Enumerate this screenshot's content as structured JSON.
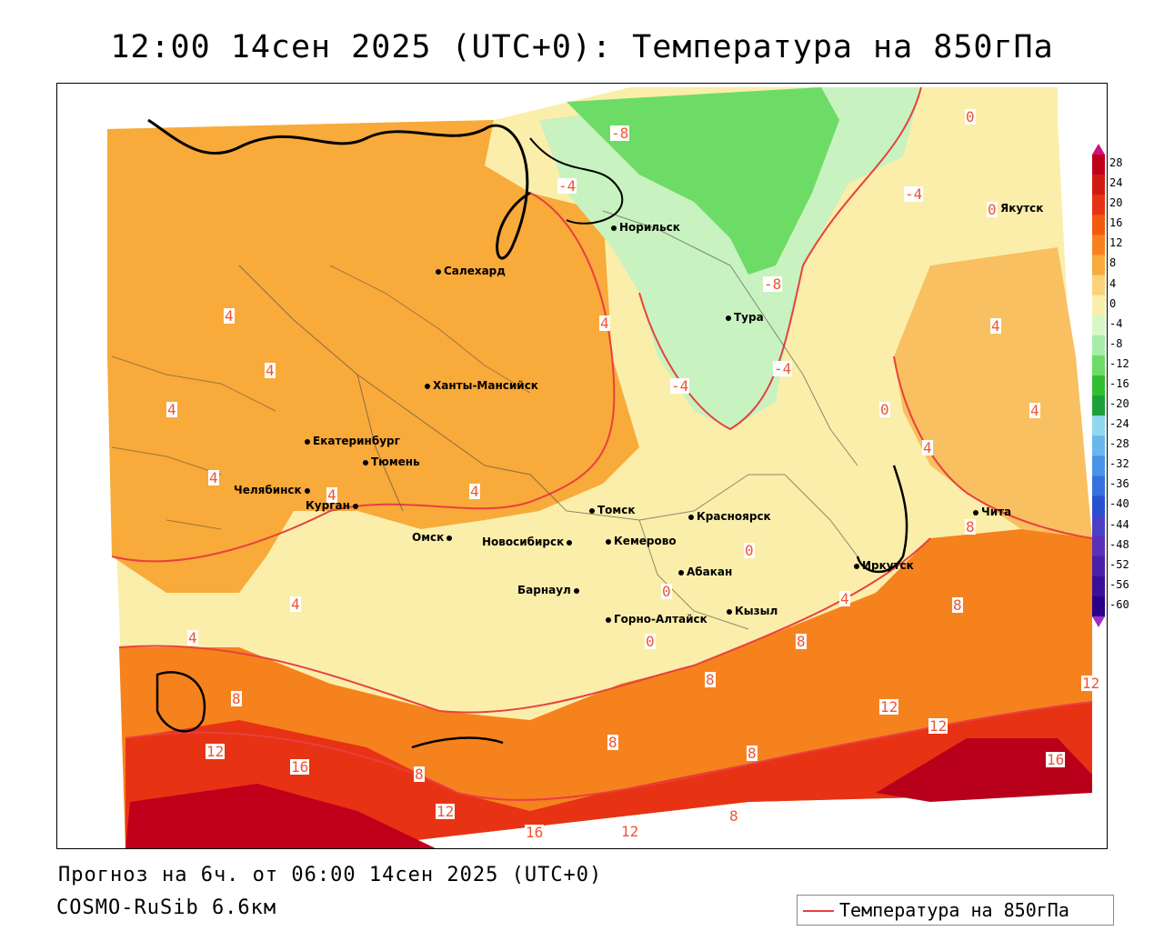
{
  "title": "12:00 14сен 2025 (UTC+0): Температура на 850гПа",
  "forecast_line": "Прогноз на 6ч. от 06:00 14сен 2025 (UTC+0)",
  "model_line": "COSMO-RuSib 6.6км",
  "legend": {
    "label": "Температура на 850гПа",
    "color": "#e84040"
  },
  "colorbar": {
    "labels": [
      "28",
      "24",
      "20",
      "16",
      "12",
      "8",
      "4",
      "0",
      "-4",
      "-8",
      "-12",
      "-16",
      "-20",
      "-24",
      "-28",
      "-32",
      "-36",
      "-40",
      "-44",
      "-48",
      "-52",
      "-56",
      "-60"
    ],
    "colors": [
      "#c0001a",
      "#d11a10",
      "#e83214",
      "#f25a10",
      "#f6821e",
      "#f8aa3a",
      "#fad27a",
      "#fbeeaa",
      "#d8f7c8",
      "#a8ecaa",
      "#6cdc66",
      "#2fbf2f",
      "#1f9f3a",
      "#8ed8f0",
      "#6ab6ee",
      "#4a94e8",
      "#3672de",
      "#2a50d2",
      "#4a40c8",
      "#5a30b8",
      "#4a20a8",
      "#3a1098",
      "#28008a"
    ]
  },
  "cities": [
    {
      "name": "Норильск"
    },
    {
      "name": "Якутск"
    },
    {
      "name": "Салехард"
    },
    {
      "name": "Тура"
    },
    {
      "name": "Ханты-Мансийск"
    },
    {
      "name": "Екатеринбург"
    },
    {
      "name": "Тюмень"
    },
    {
      "name": "Челябинск"
    },
    {
      "name": "Курган"
    },
    {
      "name": "Омск"
    },
    {
      "name": "Новосибирск"
    },
    {
      "name": "Томск"
    },
    {
      "name": "Красноярск"
    },
    {
      "name": "Кемерово"
    },
    {
      "name": "Абакан"
    },
    {
      "name": "Барнаул"
    },
    {
      "name": "Кызыл"
    },
    {
      "name": "Горно-Алтайск"
    },
    {
      "name": "Иркутск"
    },
    {
      "name": "Чита"
    }
  ],
  "contour_labels": [
    "-8",
    "-8",
    "-4",
    "-4",
    "-4",
    "-4",
    "0",
    "0",
    "0",
    "0",
    "0",
    "0",
    "4",
    "4",
    "4",
    "4",
    "4",
    "4",
    "4",
    "4",
    "4",
    "4",
    "4",
    "4",
    "4",
    "8",
    "8",
    "8",
    "8",
    "8",
    "8",
    "8",
    "8",
    "8",
    "12",
    "12",
    "12",
    "12",
    "12",
    "12",
    "16",
    "16",
    "16"
  ]
}
